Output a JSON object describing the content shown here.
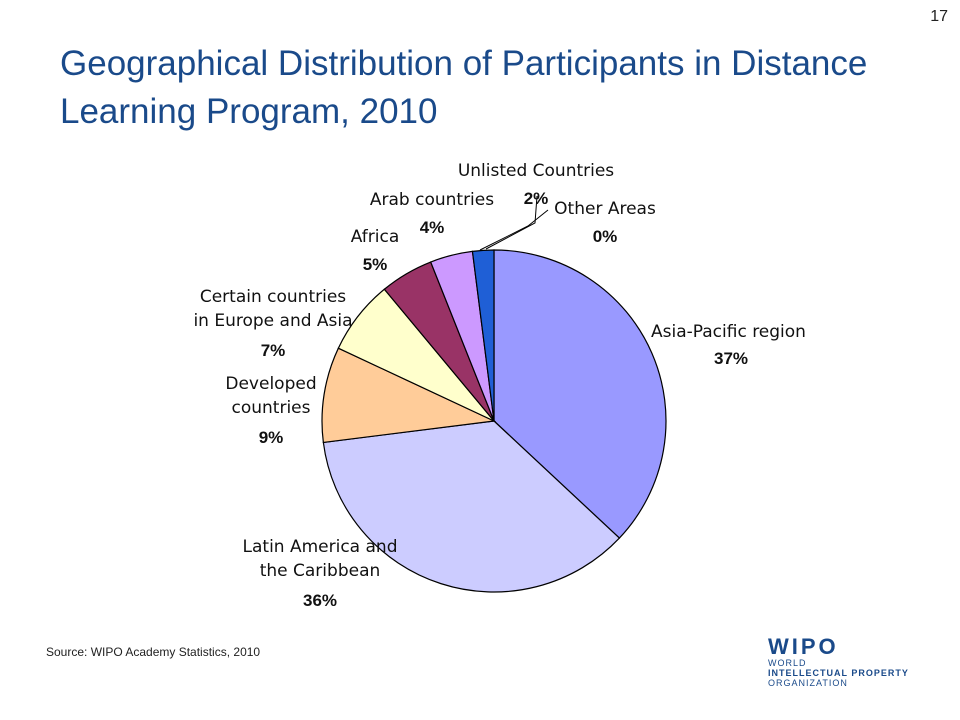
{
  "slide": {
    "number": "17",
    "title": "Geographical Distribution of Participants in Distance Learning Program, 2010",
    "source": "Source: WIPO Academy Statistics, 2010"
  },
  "logo": {
    "name": "WIPO",
    "lines": [
      "WORLD",
      "INTELLECTUAL PROPERTY",
      "ORGANIZATION"
    ]
  },
  "chart_data": {
    "type": "pie",
    "title": "",
    "slices": [
      {
        "label": [
          "Asia-Pacific region"
        ],
        "value": 37,
        "pct": "37%",
        "color": "#9999ff"
      },
      {
        "label": [
          "Latin America and",
          "the Caribbean"
        ],
        "value": 36,
        "pct": "36%",
        "color": "#ccccff"
      },
      {
        "label": [
          "Developed",
          "countries"
        ],
        "value": 9,
        "pct": "9%",
        "color": "#ffcc99"
      },
      {
        "label": [
          "Certain countries",
          "in Europe and Asia"
        ],
        "value": 7,
        "pct": "7%",
        "color": "#ffffcc"
      },
      {
        "label": [
          "Africa"
        ],
        "value": 5,
        "pct": "5%",
        "color": "#993366"
      },
      {
        "label": [
          "Arab countries"
        ],
        "value": 4,
        "pct": "4%",
        "color": "#cc99ff"
      },
      {
        "label": [
          "Unlisted Countries"
        ],
        "value": 2,
        "pct": "2%",
        "color": "#1f5fd6"
      },
      {
        "label": [
          "Other Areas"
        ],
        "value": 0,
        "pct": "0%",
        "color": "#ffffff"
      }
    ],
    "legend": "none"
  }
}
